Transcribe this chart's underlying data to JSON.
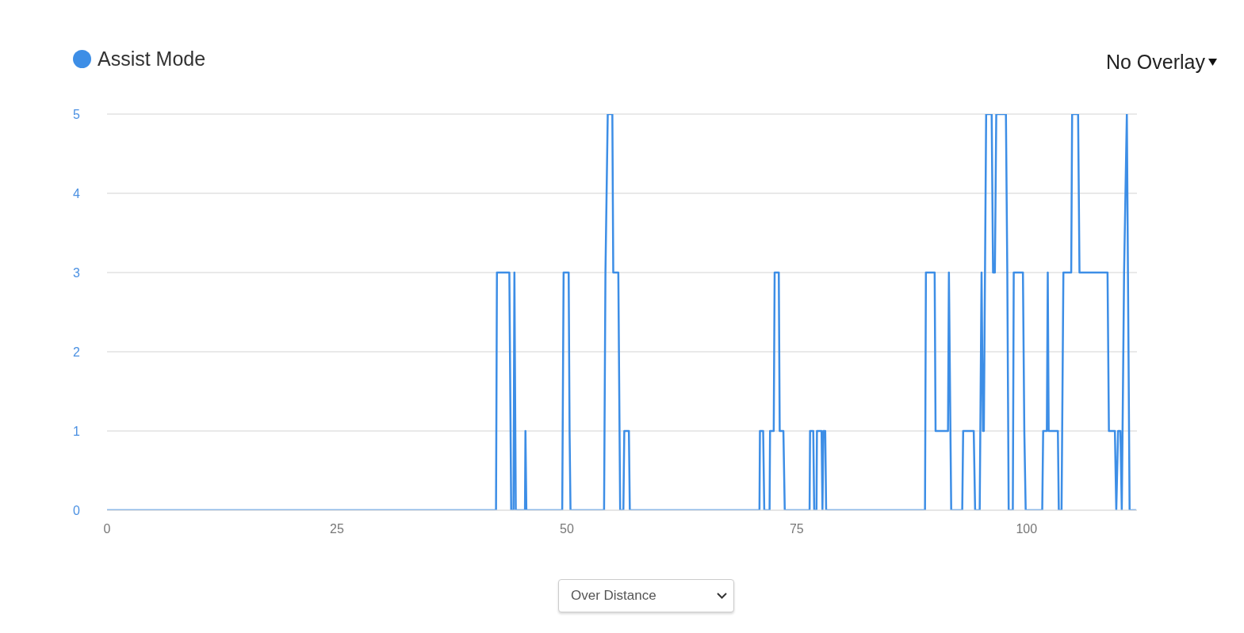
{
  "chart_data": {
    "type": "line",
    "x": [
      0,
      42.3,
      42.4,
      43.75,
      43.95,
      44.2,
      44.3,
      44.45,
      45.45,
      45.5,
      45.6,
      49.5,
      49.55,
      49.65,
      50.2,
      50.3,
      50.4,
      54.05,
      54.1,
      54.2,
      54.45,
      54.95,
      55.05,
      55.6,
      55.8,
      56.15,
      56.25,
      56.75,
      56.85,
      70.95,
      71.0,
      71.35,
      71.47,
      72.05,
      72.1,
      72.5,
      72.6,
      73.05,
      73.15,
      73.55,
      73.7,
      76.4,
      76.45,
      76.8,
      76.9,
      77.15,
      77.2,
      77.7,
      77.8,
      77.9,
      78.1,
      78.2,
      88.95,
      89.05,
      90.0,
      90.1,
      91.45,
      91.55,
      91.8,
      93.0,
      93.1,
      94.25,
      94.4,
      94.9,
      95.1,
      95.25,
      95.35,
      95.6,
      96.2,
      96.35,
      96.55,
      96.7,
      97.75,
      97.9,
      98.05,
      98.5,
      98.6,
      99.6,
      99.75,
      99.9,
      101.7,
      101.8,
      102.2,
      102.3,
      102.4,
      103.4,
      103.5,
      103.8,
      104.0,
      104.85,
      104.95,
      105.6,
      105.75,
      108.8,
      108.95,
      109.6,
      109.75,
      109.95,
      110.2,
      110.35,
      110.6,
      110.9,
      111.2,
      111.9
    ],
    "series": [
      {
        "name": "Assist Mode",
        "color": "#3d8ee6",
        "values": [
          0,
          0,
          3,
          3,
          0,
          0,
          3,
          0,
          0,
          1,
          0,
          0,
          1,
          3,
          3,
          1,
          0,
          0,
          1,
          3,
          5,
          5,
          3,
          3,
          0,
          0,
          1,
          1,
          0,
          0,
          1,
          1,
          0,
          0,
          1,
          1,
          3,
          3,
          1,
          1,
          0,
          0,
          1,
          1,
          0,
          0,
          1,
          1,
          0,
          1,
          1,
          0,
          0,
          3,
          3,
          1,
          1,
          3,
          0,
          0,
          1,
          1,
          0,
          0,
          3,
          1,
          1,
          5,
          5,
          3,
          3,
          5,
          5,
          3,
          0,
          0,
          3,
          3,
          1,
          0,
          0,
          1,
          1,
          3,
          1,
          1,
          0,
          0,
          3,
          3,
          5,
          5,
          3,
          3,
          1,
          1,
          0,
          1,
          1,
          0,
          3,
          5,
          0,
          0
        ]
      }
    ],
    "xlim": [
      0,
      112
    ],
    "xticks": [
      0,
      25,
      50,
      75,
      100
    ],
    "ylim": [
      0,
      5
    ],
    "yticks": [
      0,
      1,
      2,
      3,
      4,
      5
    ],
    "grid": "y",
    "legend": "top left",
    "line_style": "solid",
    "annotations": [
      "No Overlay",
      "Over Distance"
    ]
  }
}
